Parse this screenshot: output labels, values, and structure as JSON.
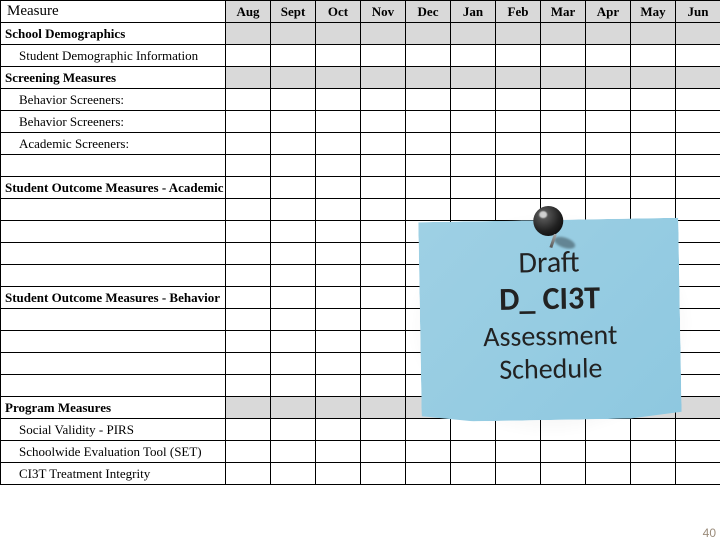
{
  "header": {
    "measure": "Measure"
  },
  "months": [
    "Aug",
    "Sept",
    "Oct",
    "Nov",
    "Dec",
    "Jan",
    "Feb",
    "Mar",
    "Apr",
    "May",
    "Jun"
  ],
  "rows": [
    {
      "type": "section",
      "label": "School Demographics",
      "shaded": true
    },
    {
      "type": "item",
      "label": "Student Demographic Information"
    },
    {
      "type": "section",
      "label": "Screening Measures",
      "shaded": true
    },
    {
      "type": "item",
      "label": "Behavior Screeners:"
    },
    {
      "type": "item",
      "label": "Behavior Screeners:"
    },
    {
      "type": "item",
      "label": "Academic Screeners:"
    },
    {
      "type": "blank"
    },
    {
      "type": "section",
      "label": "Student Outcome Measures - Academic"
    },
    {
      "type": "blank"
    },
    {
      "type": "blank"
    },
    {
      "type": "blank"
    },
    {
      "type": "blank"
    },
    {
      "type": "section",
      "label": "Student Outcome Measures - Behavior"
    },
    {
      "type": "blank"
    },
    {
      "type": "blank"
    },
    {
      "type": "blank"
    },
    {
      "type": "blank"
    },
    {
      "type": "section",
      "label": "Program Measures",
      "shaded": true
    },
    {
      "type": "item",
      "label": "Social Validity - PIRS"
    },
    {
      "type": "item",
      "label": "Schoolwide Evaluation Tool (SET)"
    },
    {
      "type": "item",
      "label": "CI3T Treatment Integrity"
    }
  ],
  "note": {
    "line1": "Draft",
    "line2": "D_ CI3T",
    "line3": "Assessment",
    "line4": "Schedule",
    "bg_from": "#9ed0e4",
    "bg_to": "#8ec8e0"
  },
  "page_number": "40",
  "colors": {
    "shaded_bg": "#d9d9d9",
    "border": "#000000"
  }
}
